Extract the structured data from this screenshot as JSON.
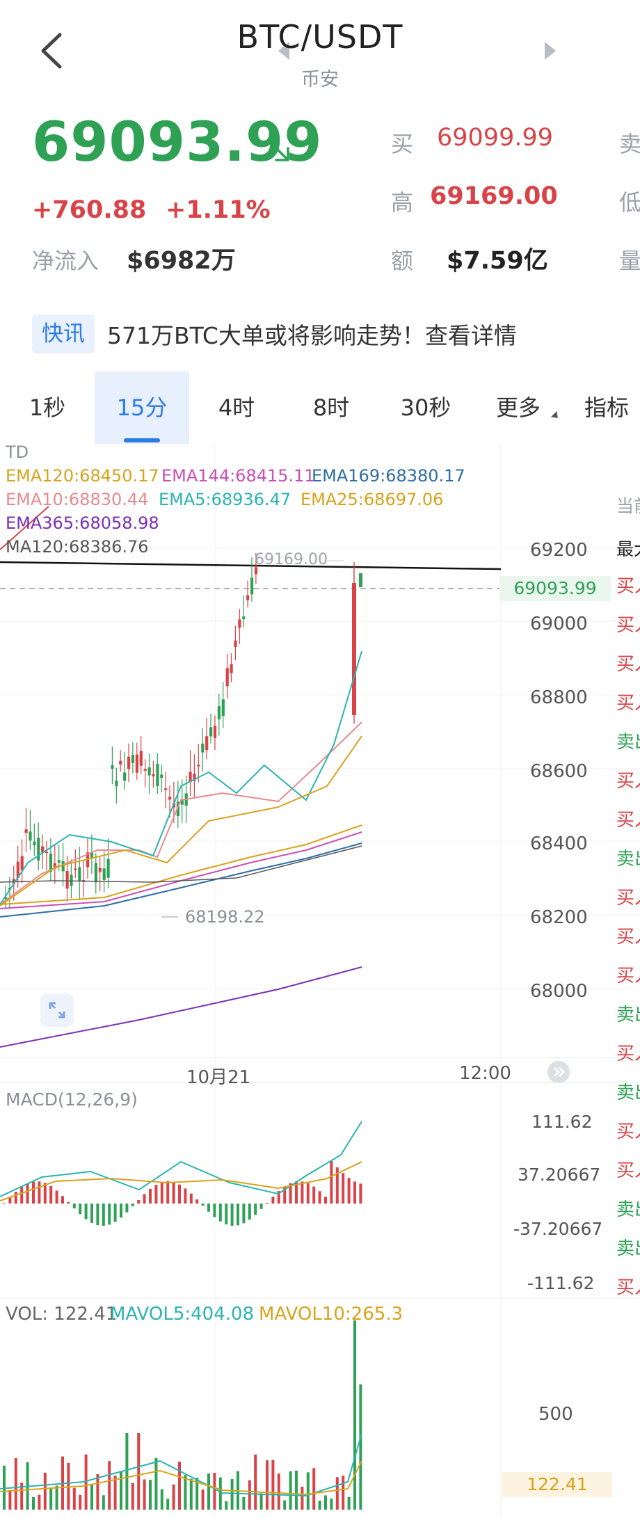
{
  "header": {
    "title": "BTC/USDT",
    "subtitle": "币安"
  },
  "ticker": {
    "price": "69093.99",
    "change": "+760.88",
    "change_pct": "+1.11%",
    "netflow_label": "净流入",
    "netflow_value": "$6982万",
    "stats": [
      {
        "label": "买",
        "value": "69099.99",
        "color": "#d94347"
      },
      {
        "label": "高",
        "value": "69169.00",
        "color": "#d94347"
      },
      {
        "label": "额",
        "value": "$7.59亿",
        "color": "#222222"
      }
    ],
    "right_labels": [
      "卖",
      "低",
      "量"
    ],
    "colors": {
      "up": "#d94347",
      "down": "#2ea155",
      "accent": "#2d7be5"
    }
  },
  "news": {
    "tag": "快讯",
    "text": "571万BTC大单或将影响走势！查看详情"
  },
  "tabs": [
    "1秒",
    "15分",
    "4时",
    "8时",
    "30秒",
    "更多",
    "指标"
  ],
  "active_tab": "15分",
  "chart": {
    "td_label": "TD",
    "legend": {
      "ema120": "EMA120:68450.17",
      "ema144": "EMA144:68415.11",
      "ema169": "EMA169:68380.17",
      "ema10": "EMA10:68830.44",
      "ema5": "EMA5:68936.47",
      "ema25": "EMA25:68697.06",
      "ema365": "EMA365:68058.98",
      "ma120": "MA120:68386.76"
    },
    "high_marker": "69169.00",
    "low_marker": "68198.22",
    "current_price_tag": "69093.99",
    "y_ticks": [
      "69200",
      "69000",
      "68800",
      "68600",
      "68400",
      "68200",
      "68000"
    ],
    "x_ticks": [
      "10月21",
      "12:00"
    ]
  },
  "macd": {
    "label": "MACD(12,26,9)",
    "y_ticks": [
      "111.62",
      "37.20667",
      "-37.20667",
      "-111.62"
    ]
  },
  "volume": {
    "label": "VOL: 122.41",
    "mavol5": "MAVOL5:404.08",
    "mavol10": "MAVOL10:265.3",
    "y_tick": "500",
    "current_tag": "122.41"
  },
  "side_panel": {
    "header": "当前",
    "first": "最大",
    "items": [
      "买入",
      "买入",
      "买入",
      "买入",
      "卖出",
      "买入",
      "买入",
      "卖出",
      "买入",
      "买入",
      "买入",
      "卖出",
      "买入",
      "卖出",
      "买入",
      "买入",
      "卖出",
      "卖出",
      "买入"
    ]
  },
  "icons": [
    "back-arrow-icon",
    "prev-pair-icon",
    "next-pair-icon",
    "price-down-arrow-icon",
    "expand-icon",
    "scroll-end-icon"
  ]
}
